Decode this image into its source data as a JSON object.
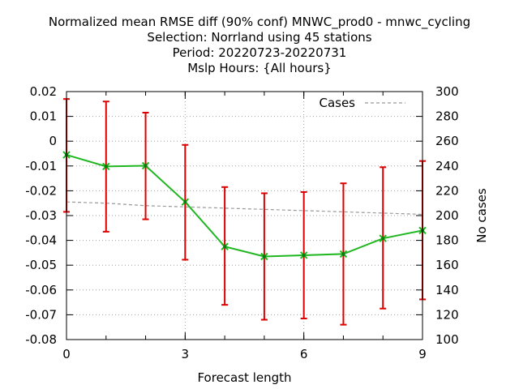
{
  "chart_data": {
    "type": "line",
    "title_lines": [
      "Normalized mean RMSE diff (90% conf) MNWC_prod0 - mnwc_cycling",
      "Selection: Norrland using    45 stations",
      "Period: 20220723-20220731",
      "Mslp   Hours: {All hours}"
    ],
    "xlabel": "Forecast length",
    "ylabel": "",
    "y2label": "No cases",
    "xlim": [
      0,
      9
    ],
    "ylim": [
      -0.08,
      0.02
    ],
    "y2lim": [
      100,
      300
    ],
    "xticks": [
      0,
      3,
      6,
      9
    ],
    "yticks": [
      0.02,
      0.01,
      0,
      -0.01,
      -0.02,
      -0.03,
      -0.04,
      -0.05,
      -0.06,
      -0.07,
      -0.08
    ],
    "yticklabels": [
      "0.02",
      "0.01",
      "0",
      "-0.01",
      "-0.02",
      "-0.03",
      "-0.04",
      "-0.05",
      "-0.06",
      "-0.07",
      "-0.08"
    ],
    "y2ticks": [
      300,
      280,
      260,
      240,
      220,
      200,
      180,
      160,
      140,
      120,
      100
    ],
    "grid": true,
    "legend_position": "top-right",
    "x": [
      0,
      1,
      2,
      3,
      4,
      5,
      6,
      7,
      8,
      9
    ],
    "series": [
      {
        "name": "",
        "axis": "left",
        "color": "#1fb71f",
        "marker": "x",
        "values": [
          -0.0055,
          -0.0102,
          -0.0099,
          -0.0245,
          -0.0425,
          -0.0465,
          -0.046,
          -0.0455,
          -0.0392,
          -0.036
        ],
        "err_low": [
          -0.0285,
          -0.0365,
          -0.0315,
          -0.0478,
          -0.066,
          -0.072,
          -0.0715,
          -0.074,
          -0.0675,
          -0.0638
        ],
        "err_high": [
          0.017,
          0.016,
          0.0115,
          -0.0015,
          -0.0185,
          -0.021,
          -0.0205,
          -0.017,
          -0.0105,
          -0.008
        ],
        "err_color": "#dd0000"
      },
      {
        "name": "Cases",
        "axis": "right",
        "color": "#999999",
        "dash": true,
        "values": [
          211,
          210,
          208,
          207,
          206,
          205,
          204,
          203,
          202,
          201
        ]
      }
    ]
  }
}
